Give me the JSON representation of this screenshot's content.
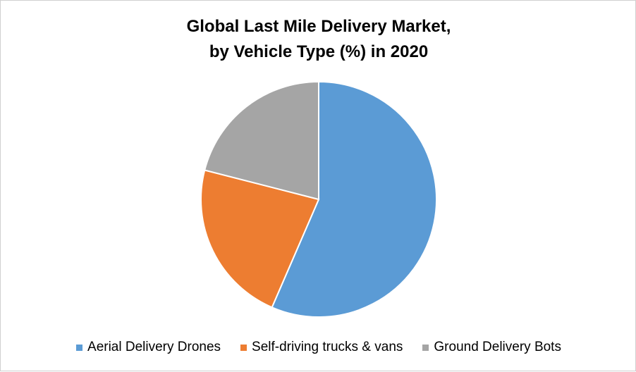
{
  "chart_data": {
    "type": "pie",
    "title": "Global Last Mile Delivery Market,",
    "subtitle": "by Vehicle Type (%) in 2020",
    "categories": [
      "Aerial Delivery Drones",
      "Self-driving trucks & vans",
      "Ground Delivery Bots"
    ],
    "values": [
      56.5,
      22.5,
      21.0
    ],
    "colors": [
      "#5B9BD5",
      "#ED7D31",
      "#A5A5A5"
    ],
    "legend_position": "bottom",
    "start_angle": "top, clockwise"
  }
}
